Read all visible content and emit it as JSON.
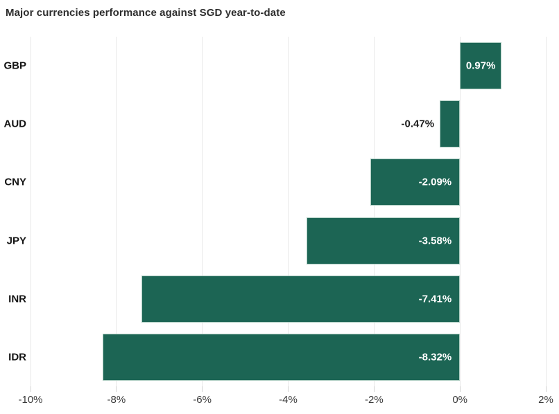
{
  "chart_data": {
    "type": "bar",
    "orientation": "horizontal",
    "title": "Major currencies performance against SGD year-to-date",
    "categories": [
      "GBP",
      "AUD",
      "CNY",
      "JPY",
      "INR",
      "IDR"
    ],
    "values": [
      0.97,
      -0.47,
      -2.09,
      -3.58,
      -7.41,
      -8.32
    ],
    "value_labels": [
      "0.97%",
      "-0.47%",
      "-2.09%",
      "-3.58%",
      "-7.41%",
      "-8.32%"
    ],
    "label_inside": [
      true,
      false,
      true,
      true,
      true,
      true
    ],
    "xlabel": "",
    "ylabel": "",
    "xlim": [
      -10,
      2
    ],
    "x_ticks": [
      -10,
      -8,
      -6,
      -4,
      -2,
      0,
      2
    ],
    "x_tick_labels": [
      "-10%",
      "-8%",
      "-6%",
      "-4%",
      "-2%",
      "0%",
      "2%"
    ],
    "grid": true,
    "legend": false,
    "colors": {
      "bar_fill": "#1c6554",
      "bar_stroke": "#aecdc2",
      "label_inside": "#ffffff",
      "label_outside": "#1a1a1a",
      "gridline": "#e7e7e7",
      "title_text": "#2e2e2e",
      "tick_text": "#3a3a3a"
    }
  }
}
